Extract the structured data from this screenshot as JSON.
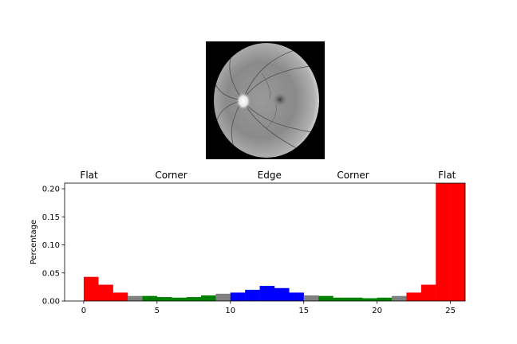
{
  "chart_data": {
    "type": "bar",
    "x": [
      0,
      1,
      2,
      3,
      4,
      5,
      6,
      7,
      8,
      9,
      10,
      11,
      12,
      13,
      14,
      15,
      16,
      17,
      18,
      19,
      20,
      21,
      22,
      23,
      24,
      25
    ],
    "values": [
      0.043,
      0.029,
      0.015,
      0.009,
      0.009,
      0.007,
      0.006,
      0.007,
      0.01,
      0.013,
      0.015,
      0.02,
      0.027,
      0.023,
      0.015,
      0.01,
      0.009,
      0.006,
      0.006,
      0.005,
      0.006,
      0.009,
      0.015,
      0.029,
      0.215,
      0.215
    ],
    "colors": [
      "#ff0000",
      "#ff0000",
      "#ff0000",
      "#808080",
      "#008000",
      "#008000",
      "#008000",
      "#008000",
      "#008000",
      "#808080",
      "#0000ff",
      "#0000ff",
      "#0000ff",
      "#0000ff",
      "#0000ff",
      "#808080",
      "#008000",
      "#008000",
      "#008000",
      "#008000",
      "#008000",
      "#808080",
      "#ff0000",
      "#ff0000",
      "#ff0000",
      "#ff0000"
    ],
    "region_labels": [
      {
        "text": "Flat",
        "x": 0.2
      },
      {
        "text": "Corner",
        "x": 5.8
      },
      {
        "text": "Edge",
        "x": 12.5
      },
      {
        "text": "Corner",
        "x": 18.2
      },
      {
        "text": "Flat",
        "x": 24.6
      }
    ],
    "ylabel": "Percentage",
    "xlabel": "",
    "xlim": [
      -1.3,
      26
    ],
    "ylim": [
      0,
      0.21
    ],
    "xticks": [
      "0",
      "5",
      "10",
      "15",
      "20",
      "25"
    ],
    "yticks": [
      "0.00",
      "0.05",
      "0.10",
      "0.15",
      "0.20"
    ],
    "grid": false,
    "legend": "none"
  }
}
